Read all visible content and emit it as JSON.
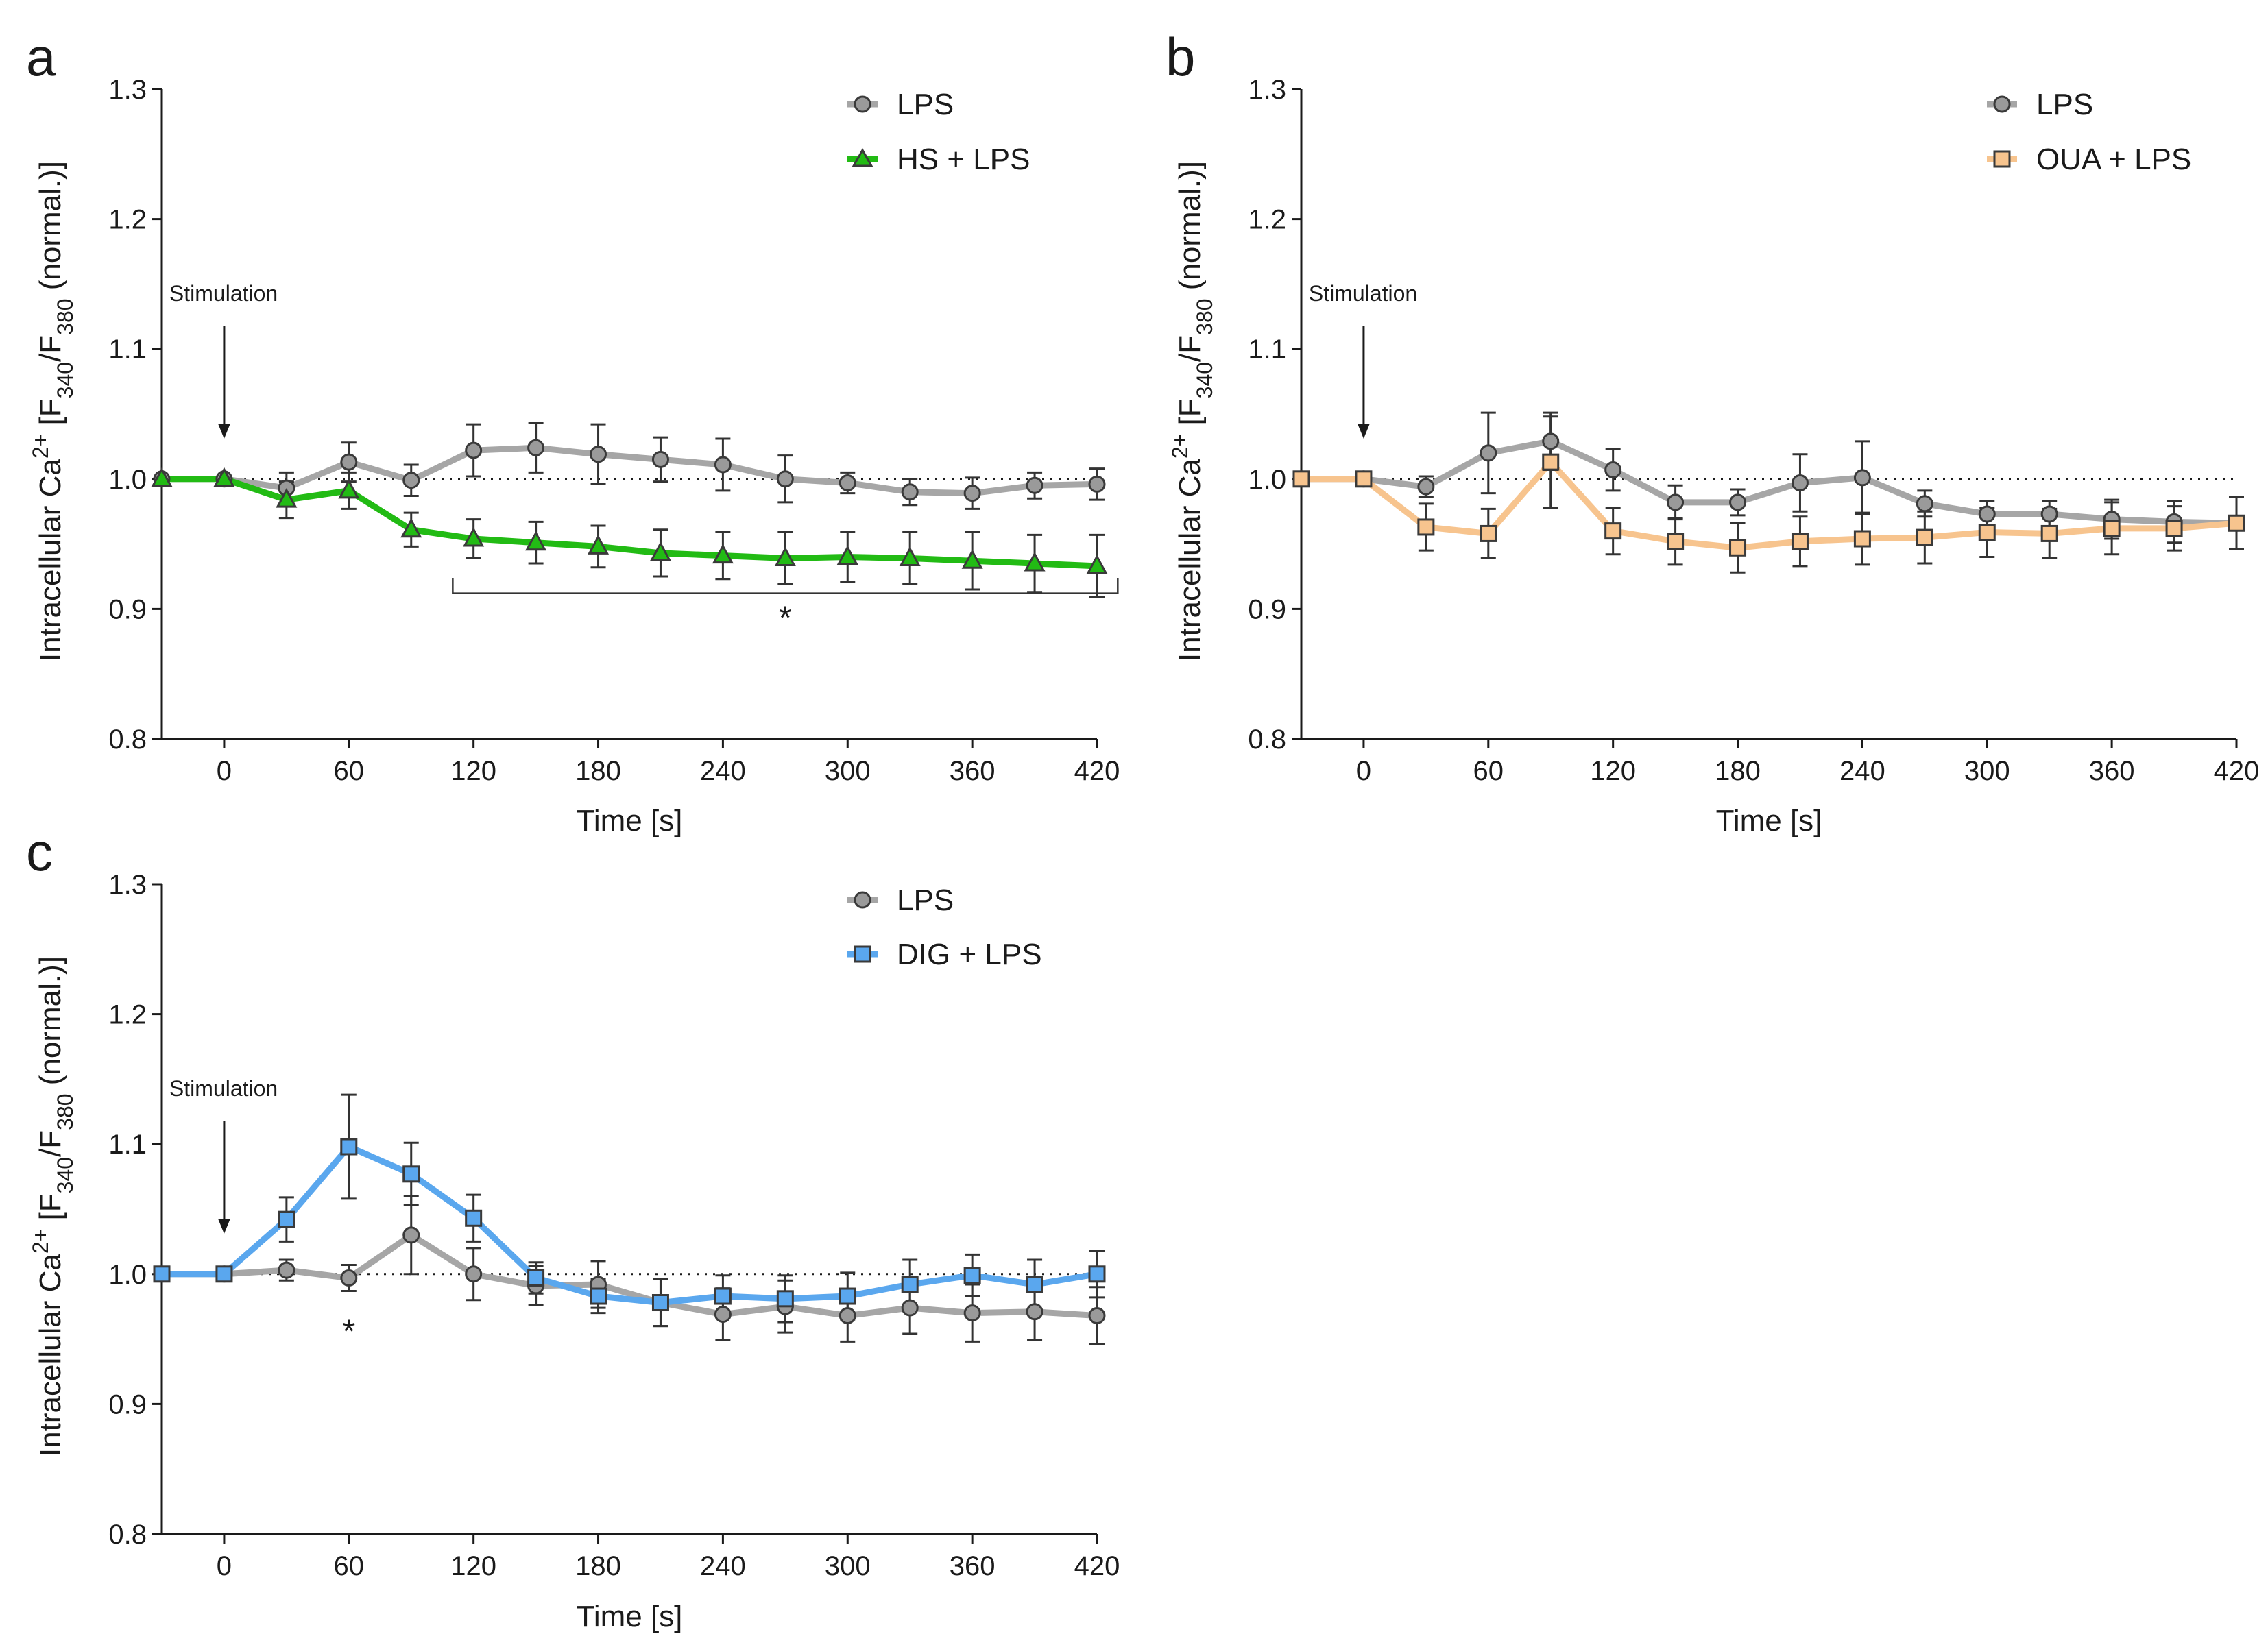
{
  "colors": {
    "LPS": "#a6a6a6",
    "LPS_marker": "#9a9a9a",
    "HS": "#22bb14",
    "OUA": "#f7c48e",
    "DIG": "#5aa7ee",
    "outline": "#3a3a3a"
  },
  "chart_data": [
    {
      "panel": "a",
      "type": "line",
      "title": "",
      "xlabel": "Time [s]",
      "ylabel_parts": [
        "Intracellular Ca",
        "2+",
        " [F",
        "340",
        "/F",
        "380",
        " (normal.)]"
      ],
      "xlim": [
        -30,
        420
      ],
      "ylim": [
        0.8,
        1.3
      ],
      "xticks": [
        0,
        60,
        120,
        180,
        240,
        300,
        360,
        420
      ],
      "yticks": [
        0.8,
        0.9,
        1.0,
        1.1,
        1.2,
        1.3
      ],
      "ytick_labels": [
        "0.8",
        "0.9",
        "1.0",
        "1.1",
        "1.2",
        "1.3"
      ],
      "reference_line": 1.0,
      "x": [
        -30,
        0,
        30,
        60,
        90,
        120,
        150,
        180,
        210,
        240,
        270,
        300,
        330,
        360,
        390,
        420
      ],
      "series": [
        {
          "name": "LPS",
          "color_key": "LPS",
          "marker": "circle",
          "values": [
            1.0,
            1.0,
            0.993,
            1.013,
            0.999,
            1.022,
            1.024,
            1.019,
            1.015,
            1.011,
            1.0,
            0.997,
            0.99,
            0.989,
            0.995,
            0.996
          ],
          "errors": [
            0,
            0,
            0.012,
            0.015,
            0.012,
            0.02,
            0.019,
            0.023,
            0.017,
            0.02,
            0.018,
            0.008,
            0.01,
            0.012,
            0.01,
            0.012
          ]
        },
        {
          "name": "HS + LPS",
          "color_key": "HS",
          "marker": "triangle",
          "values": [
            1.0,
            1.0,
            0.984,
            0.991,
            0.961,
            0.954,
            0.951,
            0.948,
            0.943,
            0.941,
            0.939,
            0.94,
            0.939,
            0.937,
            0.935,
            0.933
          ],
          "errors": [
            0,
            0,
            0.014,
            0.014,
            0.013,
            0.015,
            0.016,
            0.016,
            0.018,
            0.018,
            0.02,
            0.019,
            0.02,
            0.022,
            0.022,
            0.024
          ]
        }
      ],
      "stimulation": {
        "label": "Stimulation",
        "x": 0
      },
      "significance": {
        "label": "*",
        "x_start": 110,
        "x_end": 430,
        "y": 0.912
      }
    },
    {
      "panel": "b",
      "type": "line",
      "title": "",
      "xlabel": "Time [s]",
      "ylabel_parts": [
        "Intracellular Ca",
        "2+",
        " [F",
        "340",
        "/F",
        "380",
        " (normal.)]"
      ],
      "xlim": [
        -30,
        420
      ],
      "ylim": [
        0.8,
        1.3
      ],
      "xticks": [
        0,
        60,
        120,
        180,
        240,
        300,
        360,
        420
      ],
      "yticks": [
        0.8,
        0.9,
        1.0,
        1.1,
        1.2,
        1.3
      ],
      "ytick_labels": [
        "0.8",
        "0.9",
        "1.0",
        "1.1",
        "1.2",
        "1.3"
      ],
      "reference_line": 1.0,
      "x": [
        -30,
        0,
        30,
        60,
        90,
        120,
        150,
        180,
        210,
        240,
        270,
        300,
        330,
        360,
        390,
        420
      ],
      "series": [
        {
          "name": "LPS",
          "color_key": "LPS",
          "marker": "circle",
          "values": [
            1.0,
            1.0,
            0.994,
            1.02,
            1.029,
            1.007,
            0.982,
            0.982,
            0.997,
            1.001,
            0.981,
            0.973,
            0.973,
            0.969,
            0.967,
            0.966
          ],
          "errors": [
            0,
            0,
            0.008,
            0.031,
            0.022,
            0.016,
            0.013,
            0.01,
            0.022,
            0.028,
            0.01,
            0.01,
            0.01,
            0.015,
            0.016,
            0.02
          ]
        },
        {
          "name": "OUA + LPS",
          "color_key": "OUA",
          "marker": "square",
          "values": [
            1.0,
            1.0,
            0.963,
            0.958,
            1.013,
            0.96,
            0.952,
            0.947,
            0.952,
            0.954,
            0.955,
            0.959,
            0.958,
            0.962,
            0.962,
            0.966
          ],
          "errors": [
            0,
            0,
            0.018,
            0.019,
            0.035,
            0.018,
            0.018,
            0.019,
            0.019,
            0.02,
            0.02,
            0.019,
            0.019,
            0.02,
            0.017,
            0.02
          ]
        }
      ],
      "stimulation": {
        "label": "Stimulation",
        "x": 0
      }
    },
    {
      "panel": "c",
      "type": "line",
      "title": "",
      "xlabel": "Time [s]",
      "ylabel_parts": [
        "Intracellular Ca",
        "2+",
        " [F",
        "340",
        "/F",
        "380",
        " (normal.)]"
      ],
      "xlim": [
        -30,
        420
      ],
      "ylim": [
        0.8,
        1.3
      ],
      "xticks": [
        0,
        60,
        120,
        180,
        240,
        300,
        360,
        420
      ],
      "yticks": [
        0.8,
        0.9,
        1.0,
        1.1,
        1.2,
        1.3
      ],
      "ytick_labels": [
        "0.8",
        "0.9",
        "1.0",
        "1.1",
        "1.2",
        "1.3"
      ],
      "reference_line": 1.0,
      "x": [
        -30,
        0,
        30,
        60,
        90,
        120,
        150,
        180,
        210,
        240,
        270,
        300,
        330,
        360,
        390,
        420
      ],
      "series": [
        {
          "name": "LPS",
          "color_key": "LPS",
          "marker": "circle",
          "values": [
            1.0,
            1.0,
            1.003,
            0.997,
            1.03,
            1.0,
            0.991,
            0.992,
            0.978,
            0.969,
            0.975,
            0.968,
            0.974,
            0.97,
            0.971,
            0.968
          ],
          "errors": [
            0,
            0,
            0.008,
            0.01,
            0.03,
            0.02,
            0.015,
            0.018,
            0.018,
            0.02,
            0.02,
            0.02,
            0.02,
            0.022,
            0.022,
            0.022
          ]
        },
        {
          "name": "DIG + LPS",
          "color_key": "DIG",
          "marker": "square",
          "values": [
            1.0,
            1.0,
            1.042,
            1.098,
            1.077,
            1.043,
            0.997,
            0.983,
            0.978,
            0.983,
            0.981,
            0.983,
            0.992,
            0.999,
            0.992,
            1.0
          ],
          "errors": [
            0,
            0,
            0.017,
            0.04,
            0.024,
            0.018,
            0.012,
            0.013,
            0.018,
            0.016,
            0.018,
            0.018,
            0.019,
            0.016,
            0.019,
            0.018
          ]
        }
      ],
      "stimulation": {
        "label": "Stimulation",
        "x": 0
      },
      "significance": {
        "label": "*",
        "x": 60,
        "y": 0.957
      }
    }
  ]
}
